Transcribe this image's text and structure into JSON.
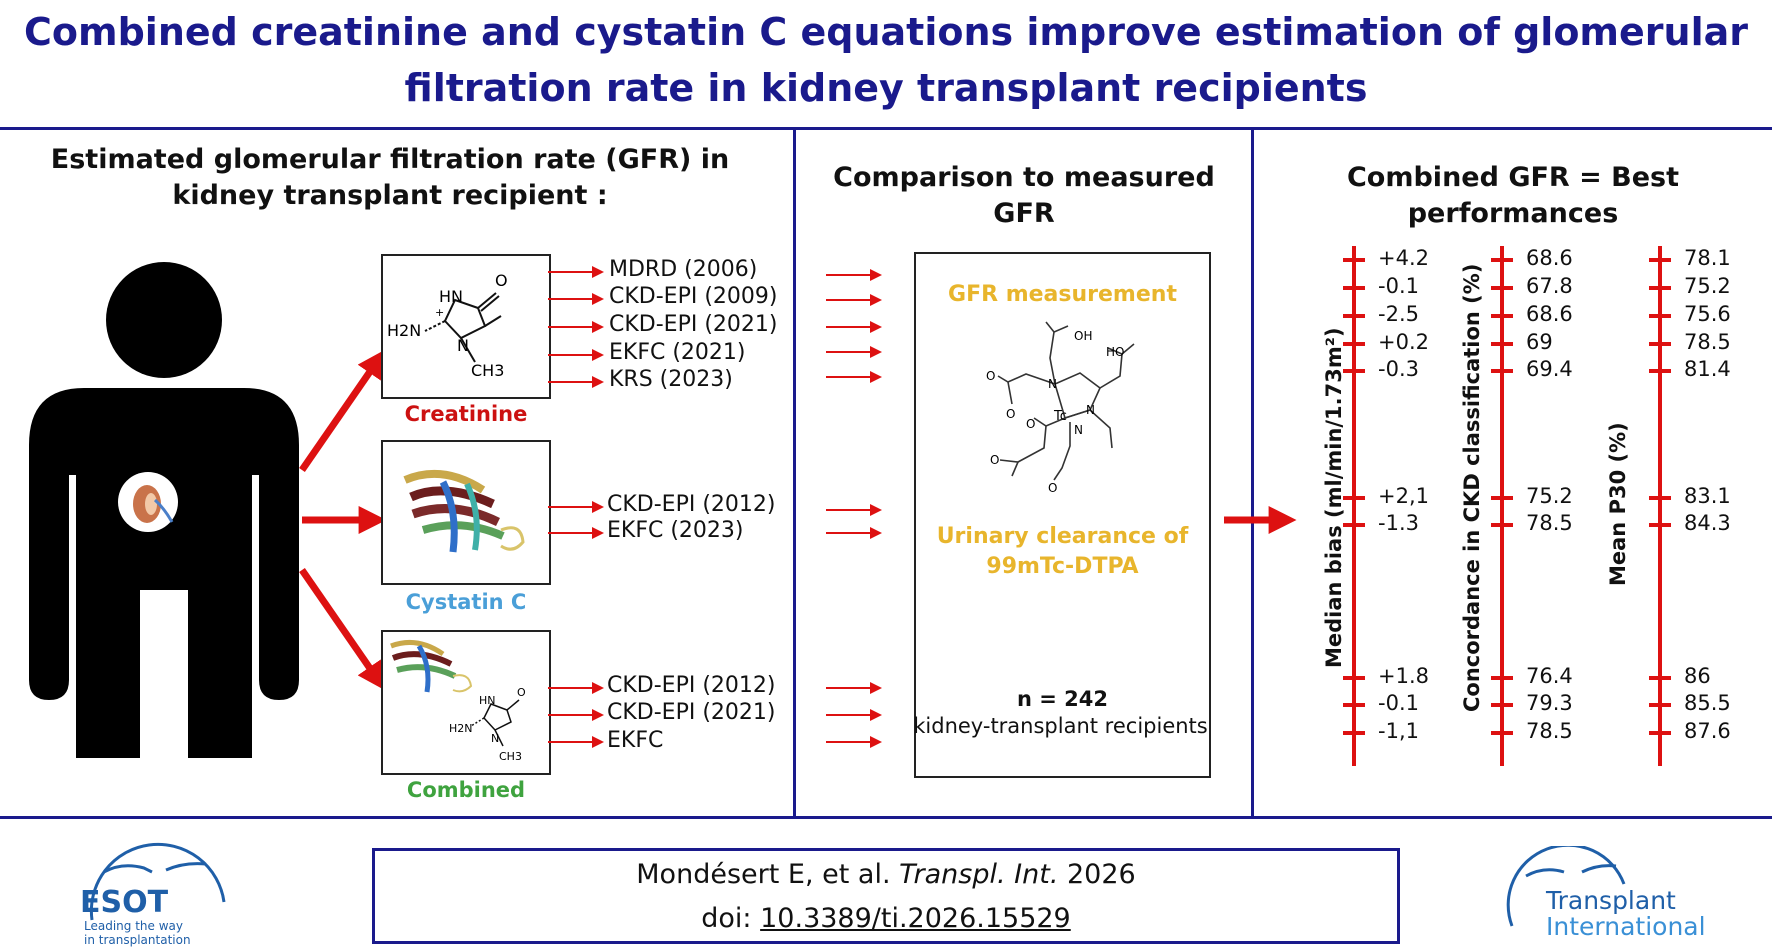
{
  "title": "Combined creatinine and cystatin C equations improve estimation of glomerular filtration rate in kidney transplant recipients",
  "panel1": {
    "heading": "Estimated glomerular filtration rate (GFR) in kidney transplant recipient :",
    "groups": [
      {
        "label": "Creatinine",
        "color": "#cc1111",
        "equations": [
          "MDRD (2006)",
          "CKD-EPI (2009)",
          "CKD-EPI (2021)",
          "EKFC (2021)",
          "KRS (2023)"
        ]
      },
      {
        "label": "Cystatin C",
        "color": "#4a9fd8",
        "equations": [
          "CKD-EPI (2012)",
          "EKFC (2023)"
        ]
      },
      {
        "label": "Combined",
        "color": "#3fa33f",
        "equations": [
          "CKD-EPI (2012)",
          "CKD-EPI (2021)",
          "EKFC"
        ]
      }
    ],
    "molecule_labels": {
      "o": "O",
      "hn": "HN",
      "plus": "+",
      "h2n": "H2N",
      "n": "N",
      "ch3": "CH3"
    }
  },
  "panel2": {
    "heading": "Comparison to measured GFR",
    "measurement_label": "GFR measurement",
    "clearance_label": "Urinary clearance of 99mTc-DTPA",
    "n_label": "n = 242",
    "n_sub": "kidney-transplant recipients",
    "atom_labels": {
      "oh": "OH",
      "ho": "HO",
      "tc": "Tc",
      "n": "N",
      "o": "O"
    }
  },
  "panel3": {
    "heading": "Combined GFR = Best performances",
    "metrics": [
      {
        "name": "Median bias (ml/min/1.73m²)",
        "values": [
          "+4.2",
          "-0.1",
          "-2.5",
          "+0.2",
          "-0.3",
          "+2,1",
          "-1.3",
          "+1.8",
          "-0.1",
          "-1,1"
        ]
      },
      {
        "name": "Concordance in CKD classification (%)",
        "values": [
          "68.6",
          "67.8",
          "68.6",
          "69",
          "69.4",
          "75.2",
          "78.5",
          "76.4",
          "79.3",
          "78.5"
        ]
      },
      {
        "name": "Mean P30 (%)",
        "values": [
          "78.1",
          "75.2",
          "75.6",
          "78.5",
          "81.4",
          "83.1",
          "84.3",
          "86",
          "85.5",
          "87.6"
        ]
      }
    ]
  },
  "footer": {
    "authors": "Mondésert E, et al.",
    "journal": "Transpl. Int.",
    "year": "2026",
    "doi_prefix": "doi:",
    "doi": "10.3389/ti.2026.15529",
    "left_logo": {
      "name": "ESOT",
      "tagline_1": "Leading the way",
      "tagline_2": "in transplantation"
    },
    "right_logo": {
      "line1": "Transplant",
      "line2": "International"
    }
  },
  "colors": {
    "navy": "#1a1a8c",
    "arrow_red": "#dd1111",
    "gold": "#e8b52c"
  }
}
